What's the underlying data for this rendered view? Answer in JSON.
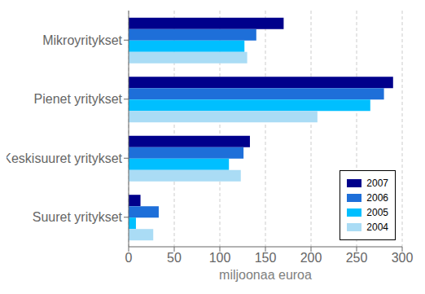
{
  "chart_data": {
    "type": "bar",
    "orientation": "horizontal",
    "categories": [
      "Mikroyritykset",
      "Pienet yritykset",
      "Keskisuuret yritykset",
      "Suuret yritykset"
    ],
    "series": [
      {
        "name": "2007",
        "color": "#00008B",
        "values": [
          170,
          290,
          133,
          13
        ]
      },
      {
        "name": "2006",
        "color": "#1E6FD9",
        "values": [
          140,
          280,
          126,
          33
        ]
      },
      {
        "name": "2005",
        "color": "#00BFFF",
        "values": [
          127,
          265,
          110,
          8
        ]
      },
      {
        "name": "2004",
        "color": "#AADCF5",
        "values": [
          130,
          207,
          123,
          27
        ]
      }
    ],
    "xlabel": "miljoonaa euroa",
    "xlim": [
      0,
      300
    ],
    "xticks": [
      0,
      50,
      100,
      150,
      200,
      250,
      300
    ],
    "grid": true,
    "legend": "lower right"
  }
}
